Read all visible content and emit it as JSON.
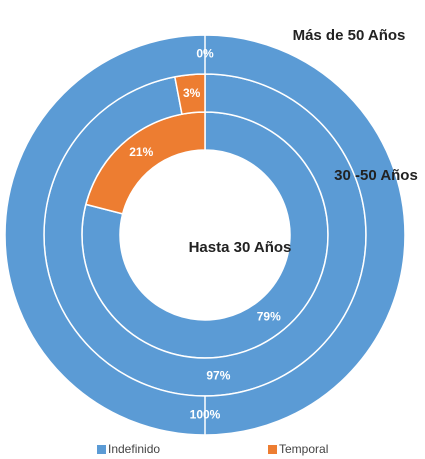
{
  "chart_data": {
    "type": "donut",
    "categories": [
      "Hasta 30 Años",
      "30 -50 Años",
      "Más de 50 Años"
    ],
    "series": [
      {
        "name": "Indefinido",
        "color": "#5b9bd5",
        "values": [
          79,
          97,
          100
        ],
        "value_labels": [
          "79%",
          "97%",
          "100%"
        ]
      },
      {
        "name": "Temporal",
        "color": "#ed7d31",
        "values": [
          21,
          3,
          0
        ],
        "value_labels": [
          "21%",
          "3%",
          "0%"
        ]
      }
    ],
    "legend": "bottom"
  }
}
